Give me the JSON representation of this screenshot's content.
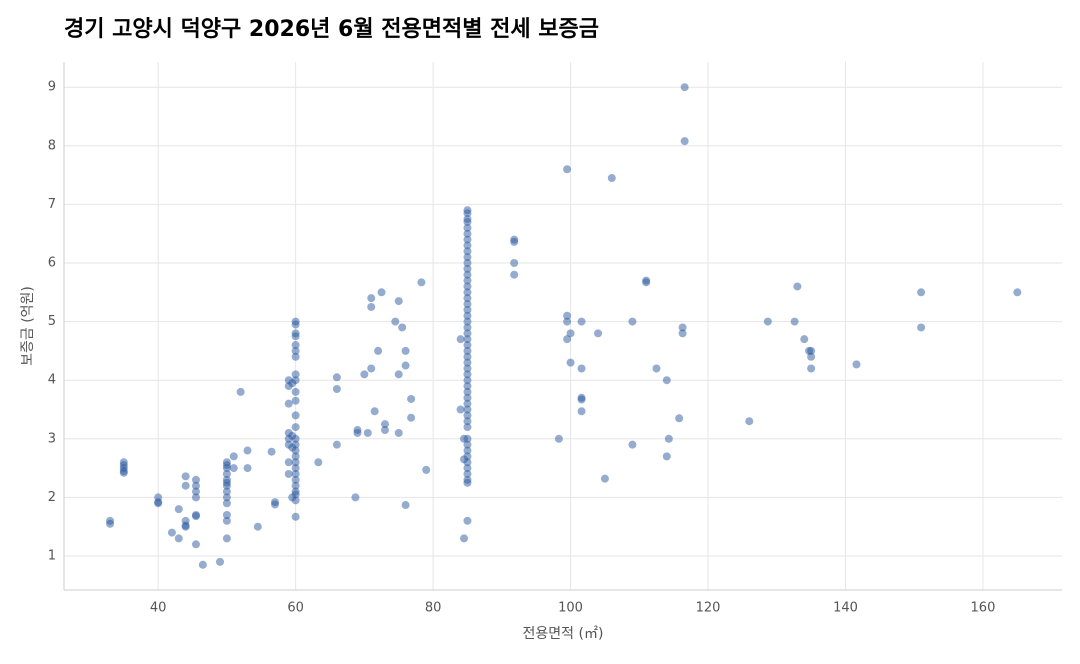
{
  "chart_data": {
    "type": "scatter",
    "title": "경기 고양시 덕양구 2026년 6월 전용면적별 전세 보증금",
    "x_label": "전용면적 (㎡)",
    "y_label": "보증금 (억원)",
    "color": "#2c5aa0",
    "grid": true,
    "xlim": [
      26.3,
      171.5
    ],
    "ylim": [
      0.42,
      9.43
    ],
    "xticks": [
      40,
      60,
      80,
      100,
      120,
      140,
      160
    ],
    "yticks": [
      1,
      2,
      3,
      4,
      5,
      6,
      7,
      8,
      9
    ],
    "x": [
      33,
      33,
      35,
      35,
      35,
      35,
      35,
      40,
      40,
      40,
      42,
      43,
      43,
      44,
      44,
      44,
      44,
      44,
      45.5,
      45.5,
      45.5,
      45.5,
      45.5,
      45.5,
      45.5,
      46.5,
      49,
      50,
      50,
      50,
      50,
      50,
      50,
      50,
      50,
      50,
      50,
      50,
      50,
      50,
      51,
      51,
      52,
      53,
      53,
      54.5,
      56.5,
      57,
      57,
      59,
      59,
      59,
      59,
      59,
      59,
      59,
      59,
      59.5,
      59.5,
      59.5,
      59.5,
      60,
      60,
      60,
      60,
      60,
      60,
      60,
      60,
      60,
      60,
      60,
      60,
      60,
      60,
      60,
      60,
      60,
      60,
      60,
      60,
      60,
      60,
      60,
      60,
      60,
      60,
      63.3,
      66,
      66,
      66,
      68.7,
      69,
      69,
      70,
      70.5,
      71,
      71,
      71,
      71.5,
      72,
      72.5,
      73,
      73,
      74.5,
      75,
      75,
      75,
      75.5,
      76,
      76,
      76,
      76.8,
      76.8,
      78.3,
      79,
      84,
      84,
      84.5,
      84.5,
      84.5,
      85,
      85,
      85,
      85,
      85,
      85,
      85,
      85,
      85,
      85,
      85,
      85,
      85,
      85,
      85,
      85,
      85,
      85,
      85,
      85,
      85,
      85,
      85,
      85,
      85,
      85,
      85,
      85,
      85,
      85,
      85,
      85,
      85,
      85,
      85,
      85,
      85,
      85,
      85,
      85,
      85,
      85,
      85,
      85,
      85,
      85,
      85,
      85,
      85,
      91.8,
      91.8,
      91.8,
      91.8,
      98.3,
      99.5,
      99.5,
      99.5,
      99.5,
      100,
      100,
      101.6,
      101.6,
      101.6,
      101.6,
      101.6,
      104,
      105,
      106,
      109,
      109,
      111,
      111,
      112.5,
      114,
      114,
      114.3,
      115.8,
      116.3,
      116.3,
      116.6,
      116.6,
      126,
      128.7,
      132.6,
      133,
      134,
      134.7,
      135,
      135,
      135,
      141.6,
      151,
      151,
      165
    ],
    "values": [
      1.6,
      1.55,
      2.6,
      2.55,
      2.5,
      2.45,
      2.42,
      2.0,
      1.9,
      1.92,
      1.4,
      1.8,
      1.3,
      2.36,
      2.2,
      1.6,
      1.5,
      1.52,
      2.3,
      2.2,
      2.1,
      2.0,
      1.7,
      1.68,
      1.2,
      0.85,
      0.9,
      2.6,
      2.55,
      2.5,
      2.4,
      2.3,
      2.25,
      2.2,
      2.1,
      2.0,
      1.9,
      1.7,
      1.6,
      1.3,
      2.7,
      2.5,
      3.8,
      2.8,
      2.5,
      1.5,
      2.78,
      1.92,
      1.88,
      4.0,
      3.9,
      3.6,
      3.1,
      3.0,
      2.9,
      2.6,
      2.4,
      3.95,
      3.05,
      2.85,
      2.0,
      5.0,
      4.95,
      4.8,
      4.75,
      4.6,
      4.5,
      4.4,
      4.1,
      4.0,
      3.8,
      3.65,
      3.4,
      3.2,
      3.0,
      2.9,
      2.8,
      2.7,
      2.6,
      2.5,
      2.4,
      2.3,
      2.2,
      2.1,
      2.05,
      1.95,
      1.67,
      2.6,
      4.05,
      3.85,
      2.9,
      2.0,
      3.15,
      3.1,
      4.1,
      3.1,
      5.4,
      5.25,
      4.2,
      3.47,
      4.5,
      5.5,
      3.25,
      3.15,
      5.0,
      5.35,
      4.1,
      3.1,
      4.9,
      4.5,
      4.25,
      1.87,
      3.68,
      3.36,
      5.67,
      2.47,
      3.5,
      4.7,
      1.3,
      3.0,
      2.65,
      6.9,
      6.85,
      6.75,
      6.7,
      6.6,
      6.5,
      6.4,
      6.3,
      6.2,
      6.1,
      6.0,
      5.9,
      5.8,
      5.7,
      5.6,
      5.5,
      5.4,
      5.3,
      5.2,
      5.1,
      5.0,
      4.9,
      4.8,
      4.7,
      4.6,
      4.5,
      4.4,
      4.3,
      4.2,
      4.1,
      4.0,
      3.9,
      3.8,
      3.7,
      3.6,
      3.5,
      3.4,
      3.3,
      3.2,
      3.0,
      2.9,
      2.8,
      2.7,
      2.6,
      2.5,
      2.4,
      2.3,
      2.25,
      1.6,
      6.4,
      6.36,
      6.0,
      5.8,
      3.0,
      7.6,
      5.1,
      5.0,
      4.7,
      4.8,
      4.3,
      5.0,
      4.2,
      3.7,
      3.67,
      3.47,
      4.8,
      2.32,
      7.45,
      5.0,
      2.9,
      5.7,
      5.67,
      4.2,
      4.0,
      2.7,
      3.0,
      3.35,
      4.9,
      4.8,
      9.0,
      8.08,
      3.3,
      5.0,
      5.0,
      5.6,
      4.7,
      4.5,
      4.5,
      4.4,
      4.2,
      4.27,
      5.5,
      4.9,
      5.5
    ]
  }
}
